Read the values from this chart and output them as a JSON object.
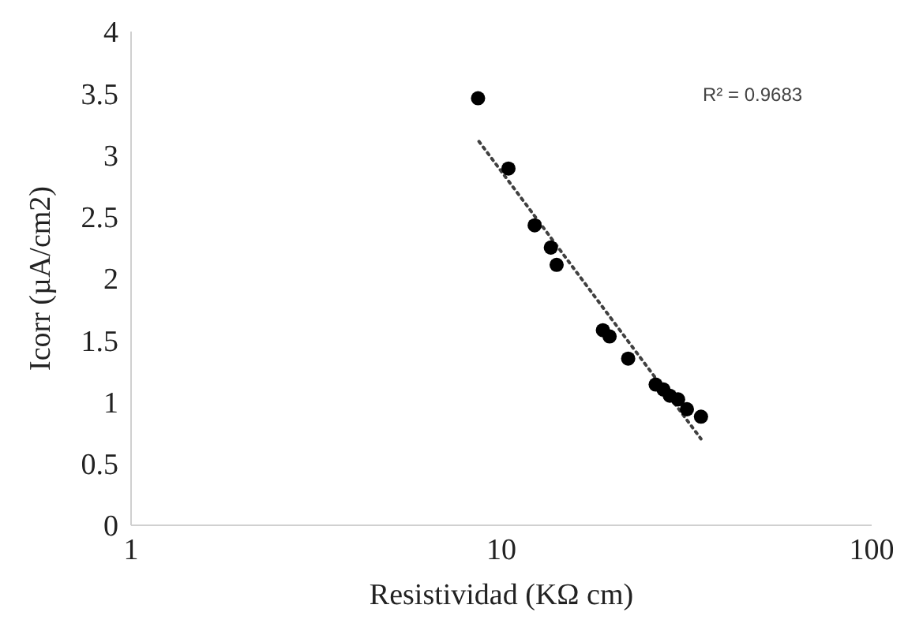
{
  "chart_data": {
    "type": "scatter",
    "xlabel": "Resistividad (KΩ cm)",
    "ylabel": "Icorr (µA/cm2)",
    "log": "x",
    "grid": false,
    "xlim": [
      1,
      100
    ],
    "xticks": [
      1,
      10,
      100
    ],
    "ylim": [
      0,
      4
    ],
    "yticks": [
      0,
      0.5,
      1,
      1.5,
      2,
      2.5,
      3,
      3.5,
      4
    ],
    "annotations": [
      "R² = 0.9683"
    ],
    "series": [
      {
        "color": "#000000",
        "marker": "circle",
        "x": [
          8.65,
          10.45,
          12.3,
          13.6,
          14.1,
          18.8,
          19.6,
          22.0,
          26.1,
          27.4,
          28.5,
          30.0,
          31.7,
          34.6
        ],
        "values": [
          3.46,
          2.89,
          2.43,
          2.25,
          2.11,
          1.58,
          1.53,
          1.35,
          1.14,
          1.1,
          1.05,
          1.02,
          0.94,
          0.88
        ]
      },
      {
        "type": "line",
        "color": "#404040",
        "line_style": "dotted",
        "marker": "none",
        "x": [
          8.7,
          34.6
        ],
        "values": [
          3.11,
          0.7
        ]
      }
    ]
  }
}
